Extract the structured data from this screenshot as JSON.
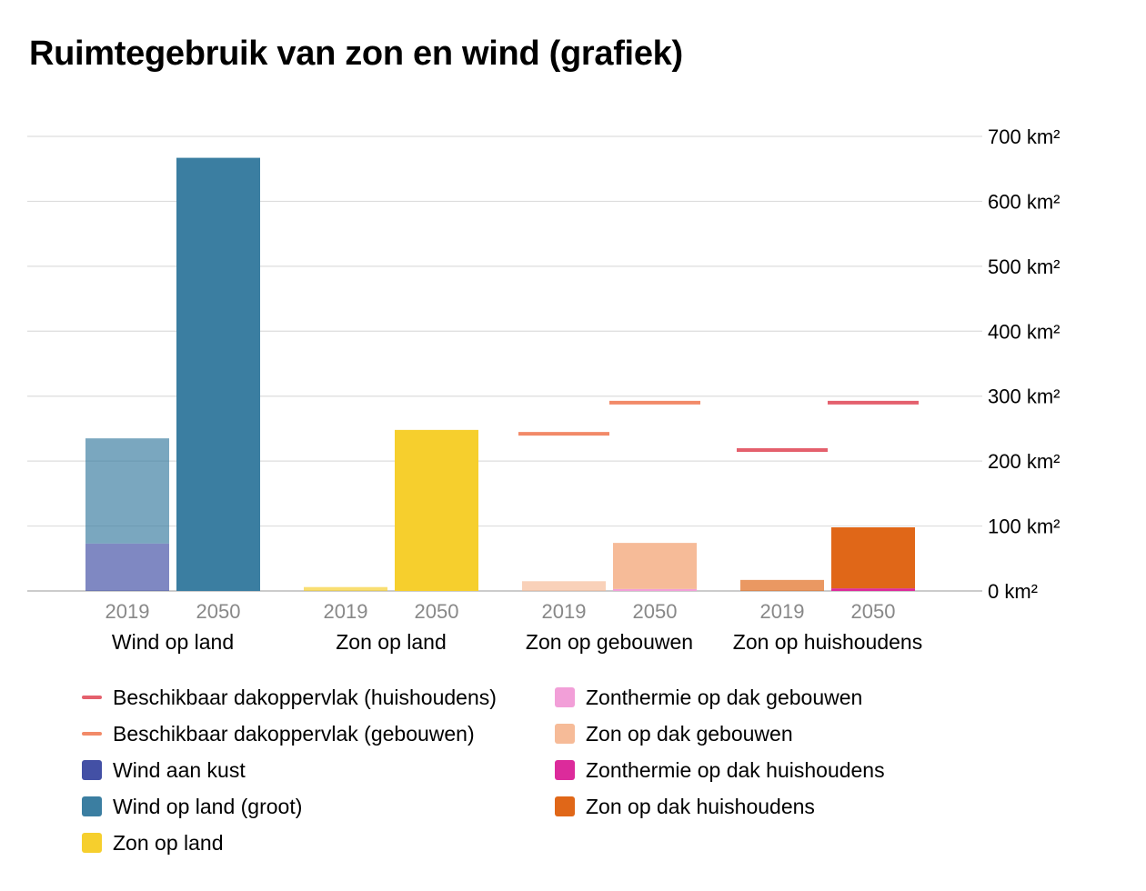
{
  "title": "Ruimtegebruik van zon en wind (grafiek)",
  "chart_data": {
    "type": "bar",
    "stacked": true,
    "title": "Ruimtegebruik van zon en wind (grafiek)",
    "unit": "km²",
    "ylim": [
      0,
      700
    ],
    "yticks": [
      0,
      100,
      200,
      300,
      400,
      500,
      600,
      700
    ],
    "ytick_labels": [
      "0 km²",
      "100 km²",
      "200 km²",
      "300 km²",
      "400 km²",
      "500 km²",
      "600 km²",
      "700 km²"
    ],
    "y_axis_side": "right",
    "grid": true,
    "legend_placement": "bottom",
    "groups": [
      {
        "label": "Wind op land",
        "bars": [
          {
            "label": "2019",
            "segments": [
              {
                "series": "Wind aan kust",
                "value": 73
              },
              {
                "series": "Wind op land (groot)",
                "value": 162
              }
            ]
          },
          {
            "label": "2050",
            "segments": [
              {
                "series": "Wind op land (groot)",
                "value": 667
              }
            ]
          }
        ]
      },
      {
        "label": "Zon op land",
        "bars": [
          {
            "label": "2019",
            "segments": [
              {
                "series": "Zon op land",
                "value": 6
              }
            ]
          },
          {
            "label": "2050",
            "segments": [
              {
                "series": "Zon op land",
                "value": 248
              }
            ]
          }
        ]
      },
      {
        "label": "Zon op gebouwen",
        "bars": [
          {
            "label": "2019",
            "segments": [
              {
                "series": "Zon op dak gebouwen",
                "value": 15
              }
            ],
            "reference": {
              "series": "Beschikbaar dakoppervlak (gebouwen)",
              "value": 242
            }
          },
          {
            "label": "2050",
            "segments": [
              {
                "series": "Zonthermie op dak gebouwen",
                "value": 3
              },
              {
                "series": "Zon op dak gebouwen",
                "value": 71
              }
            ],
            "reference": {
              "series": "Beschikbaar dakoppervlak (gebouwen)",
              "value": 290
            }
          }
        ]
      },
      {
        "label": "Zon op huishoudens",
        "bars": [
          {
            "label": "2019",
            "segments": [
              {
                "series": "Zon op dak huishoudens",
                "value": 17
              }
            ],
            "reference": {
              "series": "Beschikbaar dakoppervlak (huishoudens)",
              "value": 217
            }
          },
          {
            "label": "2050",
            "segments": [
              {
                "series": "Zonthermie op dak huishoudens",
                "value": 4
              },
              {
                "series": "Zon op dak huishoudens",
                "value": 94
              }
            ],
            "reference": {
              "series": "Beschikbaar dakoppervlak (huishoudens)",
              "value": 290
            }
          }
        ]
      }
    ],
    "series": [
      {
        "name": "Beschikbaar dakoppervlak (huishoudens)",
        "kind": "line",
        "color": "#e4606d"
      },
      {
        "name": "Beschikbaar dakoppervlak (gebouwen)",
        "kind": "line",
        "color": "#f28a68"
      },
      {
        "name": "Wind aan kust",
        "kind": "bar",
        "color": "#4350a5"
      },
      {
        "name": "Wind op land (groot)",
        "kind": "bar",
        "color": "#3b7ea1"
      },
      {
        "name": "Zon op land",
        "kind": "bar",
        "color": "#f6cf2d"
      },
      {
        "name": "Zonthermie op dak gebouwen",
        "kind": "bar",
        "color": "#f29fd8"
      },
      {
        "name": "Zon op dak gebouwen",
        "kind": "bar",
        "color": "#f6bb98"
      },
      {
        "name": "Zonthermie op dak huishoudens",
        "kind": "bar",
        "color": "#dc2b9b"
      },
      {
        "name": "Zon op dak huishoudens",
        "kind": "bar",
        "color": "#e06718"
      }
    ],
    "faded_bar_label": "2019",
    "colors": {
      "grid": "#dddddd",
      "axis_text": "#000000",
      "year_text": "#888888"
    }
  }
}
